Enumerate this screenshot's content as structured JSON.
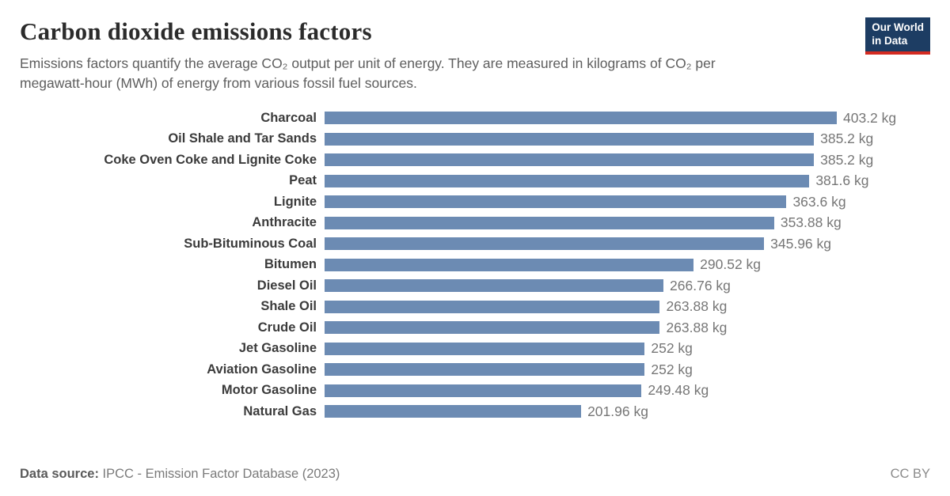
{
  "header": {
    "title": "Carbon dioxide emissions factors",
    "subtitle": "Emissions factors quantify the average CO₂ output per unit of energy. They are measured in kilograms of CO₂ per megawatt-hour (MWh) of energy from various fossil fuel sources.",
    "logo": {
      "line1": "Our World",
      "line2": "in Data",
      "background": "#1d3d63",
      "accent": "#d42b21"
    }
  },
  "chart_data": {
    "type": "bar",
    "orientation": "horizontal",
    "title": "Carbon dioxide emissions factors",
    "unit": "kg CO₂ per MWh",
    "xlim": [
      0,
      403.2
    ],
    "grid": false,
    "legend": "none",
    "bar_color": "#6c8bb3",
    "categories": [
      "Charcoal",
      "Oil Shale and Tar Sands",
      "Coke Oven Coke and Lignite Coke",
      "Peat",
      "Lignite",
      "Anthracite",
      "Sub-Bituminous Coal",
      "Bitumen",
      "Diesel Oil",
      "Shale Oil",
      "Crude Oil",
      "Jet Gasoline",
      "Aviation Gasoline",
      "Motor Gasoline",
      "Natural Gas"
    ],
    "values": [
      403.2,
      385.2,
      385.2,
      381.6,
      363.6,
      353.88,
      345.96,
      290.52,
      266.76,
      263.88,
      263.88,
      252,
      252,
      249.48,
      201.96
    ],
    "value_labels": [
      "403.2 kg",
      "385.2 kg",
      "385.2 kg",
      "381.6 kg",
      "363.6 kg",
      "353.88 kg",
      "345.96 kg",
      "290.52 kg",
      "266.76 kg",
      "263.88 kg",
      "263.88 kg",
      "252 kg",
      "252 kg",
      "249.48 kg",
      "201.96 kg"
    ]
  },
  "footer": {
    "source_label": "Data source:",
    "source_text": " IPCC - Emission Factor Database (2023)",
    "license": "CC BY"
  }
}
